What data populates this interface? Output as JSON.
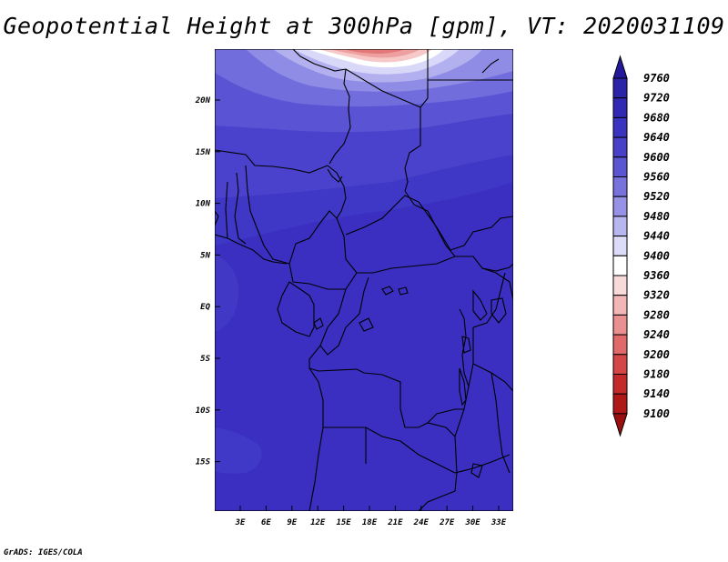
{
  "title": "Geopotential Height at 300hPa [gpm], VT: 2020031109",
  "credit": "GrADS: IGES/COLA",
  "map": {
    "lat_ticks": [
      "20N",
      "15N",
      "10N",
      "5N",
      "EQ",
      "5S",
      "10S",
      "15S"
    ],
    "lon_ticks": [
      "3E",
      "6E",
      "9E",
      "12E",
      "15E",
      "18E",
      "21E",
      "24E",
      "27E",
      "30E",
      "33E"
    ]
  },
  "colorbar": {
    "levels": [
      "9760",
      "9720",
      "9680",
      "9640",
      "9600",
      "9560",
      "9520",
      "9480",
      "9440",
      "9400",
      "9360",
      "9320",
      "9280",
      "9240",
      "9200",
      "9180",
      "9140",
      "9100"
    ],
    "colors": [
      "#23199a",
      "#2b23a8",
      "#3129b4",
      "#3a33bf",
      "#4940c8",
      "#5c55d2",
      "#7772dc",
      "#9792e6",
      "#b8b6ef",
      "#dcdcf8",
      "#ffffff",
      "#f9dada",
      "#f2b6b6",
      "#ea9090",
      "#e06a6a",
      "#d54646",
      "#c52a2a",
      "#b01818",
      "#9a1010"
    ]
  },
  "field_colors": {
    "deep": "#3a2fc0",
    "mid": "#3f37c5",
    "band1": "#4a42cc",
    "band2": "#5a54d4",
    "band3": "#716ddd",
    "band4": "#8f8ce6",
    "band5": "#b2b0ef",
    "band6": "#d9d8f8",
    "white": "#ffffff",
    "pink1": "#f6c8c8",
    "pink2": "#ee9f9f",
    "pink3": "#e47878"
  }
}
